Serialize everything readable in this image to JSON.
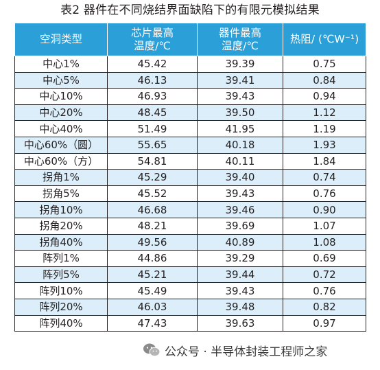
{
  "title": "表2  器件在不同烧结界面缺陷下的有限元模拟结果",
  "table": {
    "headers": [
      "空洞类型",
      "芯片最高\n温度/℃",
      "器件最高\n温度/℃",
      "热阻/ (℃W⁻¹)"
    ],
    "rows": [
      [
        "中心1%",
        "45.42",
        "39.39",
        "0.75"
      ],
      [
        "中心5%",
        "46.13",
        "39.41",
        "0.84"
      ],
      [
        "中心10%",
        "46.93",
        "39.43",
        "0.94"
      ],
      [
        "中心20%",
        "48.45",
        "39.50",
        "1.12"
      ],
      [
        "中心40%",
        "51.49",
        "41.95",
        "1.19"
      ],
      [
        "中心60%（圆）",
        "55.65",
        "40.18",
        "1.93"
      ],
      [
        "中心60%（方）",
        "54.81",
        "40.11",
        "1.84"
      ],
      [
        "拐角1%",
        "45.29",
        "39.40",
        "0.74"
      ],
      [
        "拐角5%",
        "45.52",
        "39.43",
        "0.76"
      ],
      [
        "拐角10%",
        "46.68",
        "39.46",
        "0.90"
      ],
      [
        "拐角20%",
        "48.21",
        "39.69",
        "1.07"
      ],
      [
        "拐角40%",
        "49.56",
        "40.89",
        "1.08"
      ],
      [
        "阵列1%",
        "44.86",
        "39.29",
        "0.69"
      ],
      [
        "阵列5%",
        "45.21",
        "39.44",
        "0.72"
      ],
      [
        "阵列10%",
        "45.49",
        "39.43",
        "0.76"
      ],
      [
        "阵列20%",
        "46.03",
        "39.48",
        "0.82"
      ],
      [
        "阵列40%",
        "47.43",
        "39.63",
        "0.97"
      ]
    ]
  },
  "watermark": {
    "text": "公众号 · 半导体封装工程师之家",
    "icon": "wechat-icon"
  },
  "colors": {
    "header_bg": "#2a9fd8",
    "stripe": "#dbeef9",
    "text": "#231f20"
  }
}
